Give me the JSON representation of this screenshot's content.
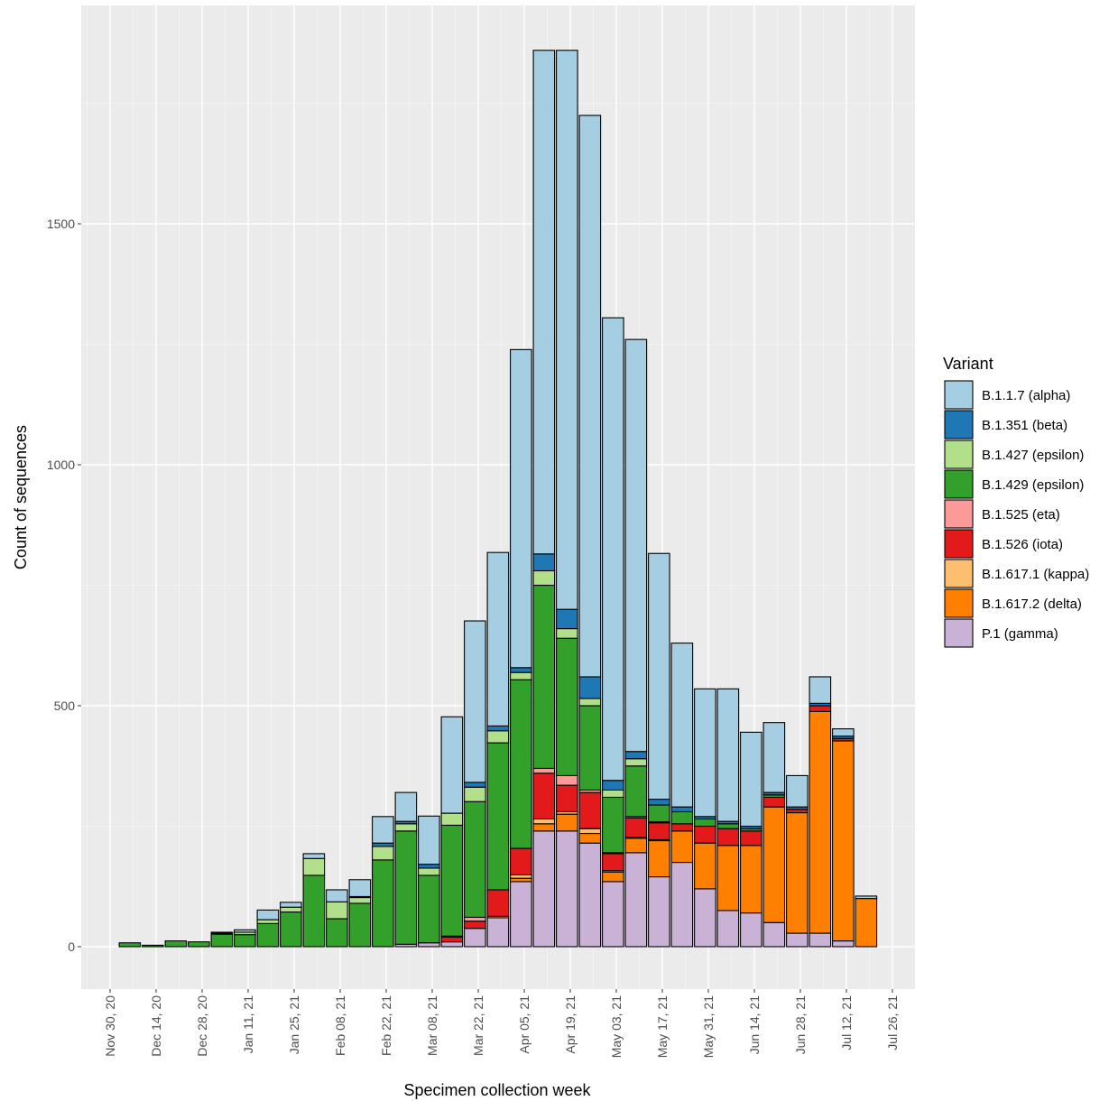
{
  "chart_data": {
    "type": "bar",
    "stacked": true,
    "xlabel": "Specimen collection week",
    "ylabel": "Count of sequences",
    "ylim": [
      -140,
      2140
    ],
    "yticks": [
      0,
      500,
      1000,
      1500
    ],
    "xticks": [
      "Nov 30, 20",
      "Dec 14, 20",
      "Dec 28, 20",
      "Jan 11, 21",
      "Jan 25, 21",
      "Feb 08, 21",
      "Feb 22, 21",
      "Mar 08, 21",
      "Mar 22, 21",
      "Apr 05, 21",
      "Apr 19, 21",
      "May 03, 21",
      "May 17, 21",
      "May 31, 21",
      "Jun 14, 21",
      "Jun 28, 21",
      "Jul 12, 21",
      "Jul 26, 21"
    ],
    "legend_title": "Variant",
    "legend_position": "right",
    "grid": true,
    "categories": [
      "Dec 06, 20",
      "Dec 13, 20",
      "Dec 20, 20",
      "Dec 27, 20",
      "Jan 03, 21",
      "Jan 10, 21",
      "Jan 17, 21",
      "Jan 24, 21",
      "Jan 31, 21",
      "Feb 07, 21",
      "Feb 14, 21",
      "Feb 21, 21",
      "Feb 28, 21",
      "Mar 07, 21",
      "Mar 14, 21",
      "Mar 21, 21",
      "Mar 28, 21",
      "Apr 04, 21",
      "Apr 11, 21",
      "Apr 18, 21",
      "Apr 25, 21",
      "May 02, 21",
      "May 09, 21",
      "May 16, 21",
      "May 23, 21",
      "May 30, 21",
      "Jun 06, 21",
      "Jun 13, 21",
      "Jun 20, 21",
      "Jun 27, 21",
      "Jul 04, 21",
      "Jul 11, 21",
      "Jul 18, 21"
    ],
    "series": [
      {
        "name": "P.1 (gamma)",
        "color": "#cab2d6",
        "values": [
          0,
          0,
          0,
          0,
          0,
          0,
          0,
          0,
          0,
          0,
          0,
          0,
          5,
          8,
          10,
          38,
          60,
          135,
          240,
          240,
          215,
          135,
          195,
          145,
          175,
          120,
          75,
          70,
          50,
          28,
          28,
          12,
          0
        ]
      },
      {
        "name": "B.1.617.2 (delta)",
        "color": "#ff7f00",
        "values": [
          0,
          0,
          0,
          0,
          0,
          0,
          0,
          0,
          0,
          0,
          0,
          0,
          0,
          0,
          0,
          0,
          0,
          7,
          15,
          35,
          20,
          20,
          30,
          75,
          65,
          95,
          135,
          140,
          240,
          250,
          460,
          415,
          100
        ]
      },
      {
        "name": "B.1.617.1 (kappa)",
        "color": "#fdbf6f",
        "values": [
          0,
          0,
          0,
          0,
          0,
          0,
          0,
          0,
          0,
          0,
          0,
          0,
          0,
          0,
          0,
          0,
          3,
          7,
          10,
          5,
          10,
          3,
          2,
          2,
          0,
          0,
          0,
          0,
          0,
          0,
          0,
          0,
          0
        ]
      },
      {
        "name": "B.1.526 (iota)",
        "color": "#e31a1c",
        "values": [
          0,
          0,
          0,
          0,
          0,
          0,
          0,
          0,
          0,
          0,
          0,
          0,
          0,
          0,
          10,
          15,
          55,
          55,
          95,
          55,
          75,
          35,
          40,
          35,
          15,
          35,
          35,
          30,
          20,
          7,
          12,
          5,
          0
        ]
      },
      {
        "name": "B.1.525 (eta)",
        "color": "#fb9a99",
        "values": [
          0,
          0,
          0,
          0,
          0,
          0,
          0,
          0,
          0,
          0,
          0,
          0,
          0,
          0,
          2,
          8,
          0,
          0,
          10,
          20,
          5,
          2,
          3,
          2,
          0,
          0,
          0,
          0,
          0,
          0,
          0,
          0,
          0
        ]
      },
      {
        "name": "B.1.429 (epsilon)",
        "color": "#33a02c",
        "values": [
          8,
          3,
          12,
          10,
          26,
          25,
          48,
          72,
          148,
          58,
          90,
          180,
          235,
          140,
          230,
          240,
          305,
          350,
          380,
          285,
          175,
          115,
          105,
          35,
          25,
          15,
          10,
          5,
          5,
          0,
          0,
          0,
          0
        ]
      },
      {
        "name": "B.1.427 (epsilon)",
        "color": "#b2df8a",
        "values": [
          0,
          0,
          0,
          0,
          2,
          5,
          8,
          10,
          35,
          35,
          12,
          28,
          15,
          15,
          25,
          30,
          25,
          15,
          30,
          20,
          15,
          15,
          15,
          0,
          0,
          0,
          0,
          0,
          0,
          0,
          0,
          0,
          0
        ]
      },
      {
        "name": "B.1.351 (beta)",
        "color": "#1f78b4",
        "values": [
          0,
          0,
          0,
          0,
          0,
          0,
          0,
          0,
          0,
          0,
          2,
          7,
          5,
          8,
          0,
          10,
          10,
          10,
          35,
          40,
          45,
          20,
          15,
          12,
          10,
          5,
          5,
          5,
          5,
          5,
          5,
          5,
          0
        ]
      },
      {
        "name": "B.1.1.7 (alpha)",
        "color": "#a6cee3",
        "values": [
          0,
          0,
          0,
          0,
          2,
          5,
          20,
          10,
          10,
          25,
          35,
          55,
          60,
          100,
          200,
          335,
          360,
          660,
          1045,
          1160,
          1165,
          960,
          855,
          510,
          340,
          265,
          275,
          195,
          145,
          65,
          55,
          15,
          5
        ]
      }
    ]
  }
}
